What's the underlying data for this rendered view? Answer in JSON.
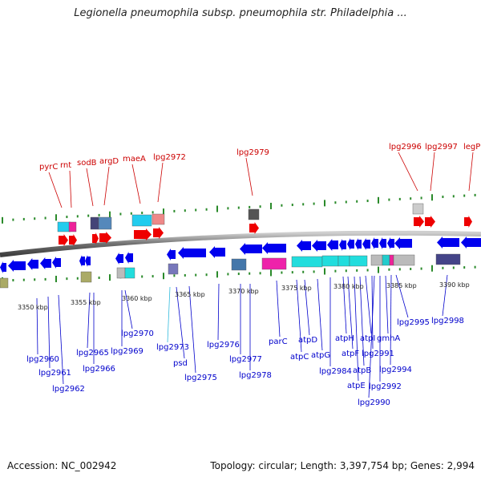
{
  "title": "Legionella pneumophila subsp. pneumophila str. Philadelphia ...",
  "footer": {
    "accession": "Accession: NC_002942",
    "summary": "Topology: circular; Length: 3,397,754 bp; Genes: 2,994"
  },
  "colors": {
    "forward": "#ee0000",
    "reverse": "#0000ee",
    "backbone": "#777777",
    "tick": "#2a8a2a",
    "top_label": "#cc0000",
    "bottom_label": "#0000cc",
    "pseudo_label": "#33bbdd"
  },
  "kbp_labels": [
    "3350 kbp",
    "3355 kbp",
    "3360 kbp",
    "3365 kbp",
    "3370 kbp",
    "3375 kbp",
    "3380 kbp",
    "3385 kbp",
    "3390 kbp"
  ],
  "top_labels": [
    "pyrC",
    "rnt",
    "sodB",
    "argD",
    "maeA",
    "lpg2972",
    "lpg2979",
    "lpg2996",
    "lpg2997",
    "legP"
  ],
  "bottom_labels": [
    "lpg2960",
    "lpg2961",
    "lpg2962",
    "lpg2965",
    "lpg2966",
    "lpg2969",
    "lpg2970",
    "lpg2973",
    "psd",
    "lpg2975",
    "lpg2976",
    "lpg2977",
    "lpg2978",
    "parC",
    "atpC",
    "atpD",
    "atpG",
    "lpg2984",
    "atpH",
    "atpF",
    "atpE",
    "atpB",
    "atpI",
    "lpg2991",
    "gmhA",
    "lpg2990",
    "lpg2992",
    "lpg2994",
    "lpg2995",
    "lpg2998"
  ]
}
